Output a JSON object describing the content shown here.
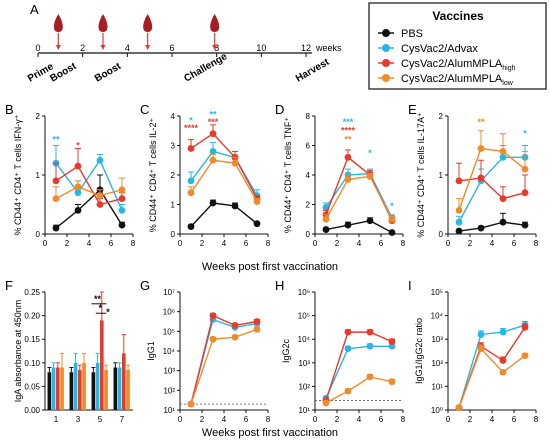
{
  "colors": {
    "PBS": "#111111",
    "Advax": "#29b6e6",
    "AlumHigh": "#e8392b",
    "AlumLow": "#f08b2c"
  },
  "timeline": {
    "label": "A",
    "ticks": [
      "0",
      "2",
      "4",
      "6",
      "8",
      "10",
      "12"
    ],
    "unit": "weeks",
    "events": [
      {
        "label": "Prime",
        "week": 0
      },
      {
        "label": "Boost",
        "week": 1
      },
      {
        "label": "Boost",
        "week": 3
      },
      {
        "label": "Challenge",
        "week": 7
      },
      {
        "label": "Harvest",
        "week": 12
      }
    ],
    "injection_weeks": [
      1,
      3,
      5,
      8
    ]
  },
  "legend": {
    "title": "Vaccines",
    "entries": [
      {
        "name": "PBS",
        "sub": "",
        "color": "#111111"
      },
      {
        "name": "CysVac2/Advax",
        "sub": "",
        "color": "#29b6e6"
      },
      {
        "name": "CysVac2/AlumMPLA",
        "sub": "high",
        "color": "#e8392b"
      },
      {
        "name": "CysVac2/AlumMPLA",
        "sub": "low",
        "color": "#f08b2c"
      }
    ]
  },
  "xlabel_row1": "Weeks post first vaccination",
  "xlabel_row2": "Weeks post first vaccination",
  "chart_data": [
    {
      "id": "B",
      "type": "line",
      "ylabel": "% CD44⁺ CD4⁺ T cells IFN-γ⁺",
      "x": [
        1,
        3,
        5,
        7
      ],
      "ylim": [
        0,
        2
      ],
      "yticks": [
        "0",
        "1",
        "2"
      ],
      "xticks": [
        "0",
        "2",
        "4",
        "6",
        "8"
      ],
      "series": [
        {
          "key": "PBS",
          "values": [
            0.1,
            0.4,
            0.75,
            0.15
          ],
          "err": [
            0.05,
            0.1,
            0.25,
            0.05
          ]
        },
        {
          "key": "Advax",
          "values": [
            1.2,
            0.7,
            1.25,
            0.4
          ],
          "err": [
            0.3,
            0.2,
            0.1,
            0.1
          ]
        },
        {
          "key": "AlumHigh",
          "values": [
            0.9,
            1.15,
            0.5,
            0.6
          ],
          "err": [
            0.3,
            0.3,
            0.1,
            0.1
          ]
        },
        {
          "key": "AlumLow",
          "values": [
            0.6,
            0.8,
            0.65,
            0.75
          ],
          "err": [
            0.2,
            0.1,
            0.1,
            0.2
          ]
        }
      ],
      "stars": [
        {
          "x": 1,
          "y": 1.55,
          "text": "**",
          "key": "Advax"
        },
        {
          "x": 3,
          "y": 1.45,
          "text": "*",
          "key": "AlumHigh"
        }
      ]
    },
    {
      "id": "C",
      "type": "line",
      "ylabel": "% CD44⁺ CD4⁺ T cells IL-2⁺",
      "x": [
        1,
        3,
        5,
        7
      ],
      "ylim": [
        0,
        4
      ],
      "yticks": [
        "0",
        "1",
        "2",
        "3",
        "4"
      ],
      "xticks": [
        "0",
        "2",
        "4",
        "6",
        "8"
      ],
      "series": [
        {
          "key": "PBS",
          "values": [
            0.25,
            1.05,
            0.95,
            0.35
          ],
          "err": [
            0.05,
            0.1,
            0.1,
            0.05
          ]
        },
        {
          "key": "Advax",
          "values": [
            1.8,
            2.8,
            2.6,
            1.3
          ],
          "err": [
            0.3,
            0.3,
            0.2,
            0.2
          ]
        },
        {
          "key": "AlumHigh",
          "values": [
            2.9,
            3.4,
            2.6,
            1.2
          ],
          "err": [
            0.3,
            0.3,
            0.2,
            0.1
          ]
        },
        {
          "key": "AlumLow",
          "values": [
            1.4,
            2.5,
            2.4,
            1.1
          ],
          "err": [
            0.2,
            0.2,
            0.2,
            0.1
          ]
        }
      ],
      "stars": [
        {
          "x": 1,
          "y": 3.75,
          "text": "*",
          "key": "Advax"
        },
        {
          "x": 1,
          "y": 3.5,
          "text": "****",
          "key": "AlumHigh"
        },
        {
          "x": 3,
          "y": 3.95,
          "text": "**",
          "key": "Advax"
        },
        {
          "x": 3,
          "y": 3.7,
          "text": "***",
          "key": "AlumHigh"
        }
      ]
    },
    {
      "id": "D",
      "type": "line",
      "ylabel": "% CD44⁺ CD4⁺ T cells TNF⁺",
      "x": [
        1,
        3,
        5,
        7
      ],
      "ylim": [
        0,
        8
      ],
      "yticks": [
        "0",
        "2",
        "4",
        "6",
        "8"
      ],
      "xticks": [
        "0",
        "2",
        "4",
        "6",
        "8"
      ],
      "series": [
        {
          "key": "PBS",
          "values": [
            0.3,
            0.6,
            0.9,
            0.1
          ],
          "err": [
            0.1,
            0.2,
            0.2,
            0.05
          ]
        },
        {
          "key": "Advax",
          "values": [
            1.8,
            4.0,
            4.1,
            1.1
          ],
          "err": [
            0.3,
            0.4,
            0.3,
            0.2
          ]
        },
        {
          "key": "AlumHigh",
          "values": [
            1.3,
            5.2,
            4.0,
            0.9
          ],
          "err": [
            0.3,
            0.5,
            0.3,
            0.1
          ]
        },
        {
          "key": "AlumLow",
          "values": [
            1.0,
            3.7,
            3.9,
            1.0
          ],
          "err": [
            0.3,
            0.3,
            0.2,
            0.2
          ]
        }
      ],
      "stars": [
        {
          "x": 3,
          "y": 7.4,
          "text": "***",
          "key": "Advax"
        },
        {
          "x": 3,
          "y": 6.8,
          "text": "****",
          "key": "AlumHigh"
        },
        {
          "x": 3,
          "y": 6.2,
          "text": "**",
          "key": "AlumLow"
        },
        {
          "x": 5,
          "y": 5.3,
          "text": "*",
          "key": "Advax"
        },
        {
          "x": 7,
          "y": 1.7,
          "text": "*",
          "key": "Advax"
        }
      ]
    },
    {
      "id": "E",
      "type": "line",
      "ylabel": "% CD44⁺ CD4⁺ T cells IL-17A⁺",
      "x": [
        1,
        3,
        5,
        7
      ],
      "ylim": [
        0,
        2
      ],
      "yticks": [
        "0",
        "1",
        "2"
      ],
      "xticks": [
        "0",
        "2",
        "4",
        "6",
        "8"
      ],
      "series": [
        {
          "key": "PBS",
          "values": [
            0.05,
            0.1,
            0.2,
            0.15
          ],
          "err": [
            0.02,
            0.03,
            0.15,
            0.05
          ]
        },
        {
          "key": "Advax",
          "values": [
            0.2,
            0.9,
            1.3,
            1.3
          ],
          "err": [
            0.1,
            0.2,
            0.2,
            0.2
          ]
        },
        {
          "key": "AlumHigh",
          "values": [
            0.9,
            0.95,
            0.6,
            0.7
          ],
          "err": [
            0.3,
            0.3,
            0.2,
            0.3
          ]
        },
        {
          "key": "AlumLow",
          "values": [
            0.4,
            1.45,
            1.4,
            1.1
          ],
          "err": [
            0.2,
            0.3,
            0.3,
            0.3
          ]
        }
      ],
      "stars": [
        {
          "x": 3,
          "y": 1.85,
          "text": "**",
          "key": "AlumLow"
        },
        {
          "x": 7,
          "y": 1.65,
          "text": "*",
          "key": "Advax"
        }
      ]
    },
    {
      "id": "F",
      "type": "bar",
      "ylabel": "IgA absorbance at 450nm",
      "categories": [
        "1",
        "3",
        "5",
        "7"
      ],
      "ylim": [
        0,
        0.25
      ],
      "yticks": [
        "0.00",
        "0.05",
        "0.10",
        "0.15",
        "0.20",
        "0.25"
      ],
      "series": [
        {
          "key": "PBS",
          "values": [
            0.08,
            0.08,
            0.08,
            0.09
          ],
          "err": [
            0.01,
            0.01,
            0.01,
            0.01
          ]
        },
        {
          "key": "Advax",
          "values": [
            0.09,
            0.1,
            0.1,
            0.09
          ],
          "err": [
            0.01,
            0.02,
            0.02,
            0.01
          ]
        },
        {
          "key": "AlumHigh",
          "values": [
            0.09,
            0.085,
            0.19,
            0.12
          ],
          "err": [
            0.01,
            0.01,
            0.06,
            0.04
          ]
        },
        {
          "key": "AlumLow",
          "values": [
            0.09,
            0.1,
            0.085,
            0.085
          ],
          "err": [
            0.03,
            0.02,
            0.01,
            0.01
          ]
        }
      ],
      "sig": [
        {
          "text": "**"
        },
        {
          "text": "*"
        },
        {
          "text": "*"
        }
      ]
    },
    {
      "id": "G",
      "type": "line",
      "ylabel": "IgG1",
      "x": [
        1,
        3,
        5,
        7
      ],
      "log": true,
      "ylim": [
        1,
        7
      ],
      "yticks": [
        "10¹",
        "10²",
        "10³",
        "10⁴",
        "10⁵",
        "10⁶",
        "10⁷"
      ],
      "xticks": [
        "0",
        "2",
        "4",
        "6",
        "8"
      ],
      "dotted": 1.3,
      "series": [
        {
          "key": "Advax",
          "values": [
            1.3,
            5.6,
            5.2,
            5.4
          ],
          "err": [
            0,
            0.1,
            0.1,
            0.1
          ]
        },
        {
          "key": "AlumHigh",
          "values": [
            1.3,
            5.8,
            5.3,
            5.5
          ],
          "err": [
            0,
            0.1,
            0.1,
            0.1
          ]
        },
        {
          "key": "AlumLow",
          "values": [
            1.3,
            4.6,
            4.7,
            5.1
          ],
          "err": [
            0,
            0.1,
            0.1,
            0.1
          ]
        }
      ]
    },
    {
      "id": "H",
      "type": "line",
      "ylabel": "IgG2c",
      "x": [
        1,
        3,
        5,
        7
      ],
      "log": true,
      "ylim": [
        1,
        6
      ],
      "yticks": [
        "10¹",
        "10²",
        "10³",
        "10⁴",
        "10⁵",
        "10⁶"
      ],
      "xticks": [
        "0",
        "2",
        "4",
        "6",
        "8"
      ],
      "dotted": 1.4,
      "series": [
        {
          "key": "Advax",
          "values": [
            1.5,
            3.6,
            3.7,
            3.7
          ],
          "err": [
            0,
            0.1,
            0.1,
            0.1
          ]
        },
        {
          "key": "AlumHigh",
          "values": [
            1.4,
            4.3,
            4.3,
            3.9
          ],
          "err": [
            0,
            0.1,
            0.1,
            0.1
          ]
        },
        {
          "key": "AlumLow",
          "values": [
            1.3,
            1.8,
            2.4,
            2.2
          ],
          "err": [
            0,
            0.1,
            0.1,
            0.1
          ]
        }
      ]
    },
    {
      "id": "I",
      "type": "line",
      "ylabel": "IgG1/IgG2c ratio",
      "x": [
        1,
        3,
        5,
        7
      ],
      "log": true,
      "ylim": [
        0,
        5
      ],
      "yticks": [
        "10⁰",
        "10¹",
        "10²",
        "10³",
        "10⁴",
        "10⁵"
      ],
      "xticks": [
        "0",
        "2",
        "4",
        "6",
        "8"
      ],
      "series": [
        {
          "key": "Advax",
          "values": [
            0.1,
            3.2,
            3.3,
            3.6
          ],
          "err": [
            0,
            0.15,
            0.15,
            0.15
          ]
        },
        {
          "key": "AlumHigh",
          "values": [
            0.1,
            2.7,
            2.1,
            3.5
          ],
          "err": [
            0,
            0.15,
            0.15,
            0.15
          ]
        },
        {
          "key": "AlumLow",
          "values": [
            0.1,
            2.6,
            1.6,
            2.3
          ],
          "err": [
            0,
            0.15,
            0.1,
            0.1
          ]
        }
      ]
    }
  ]
}
